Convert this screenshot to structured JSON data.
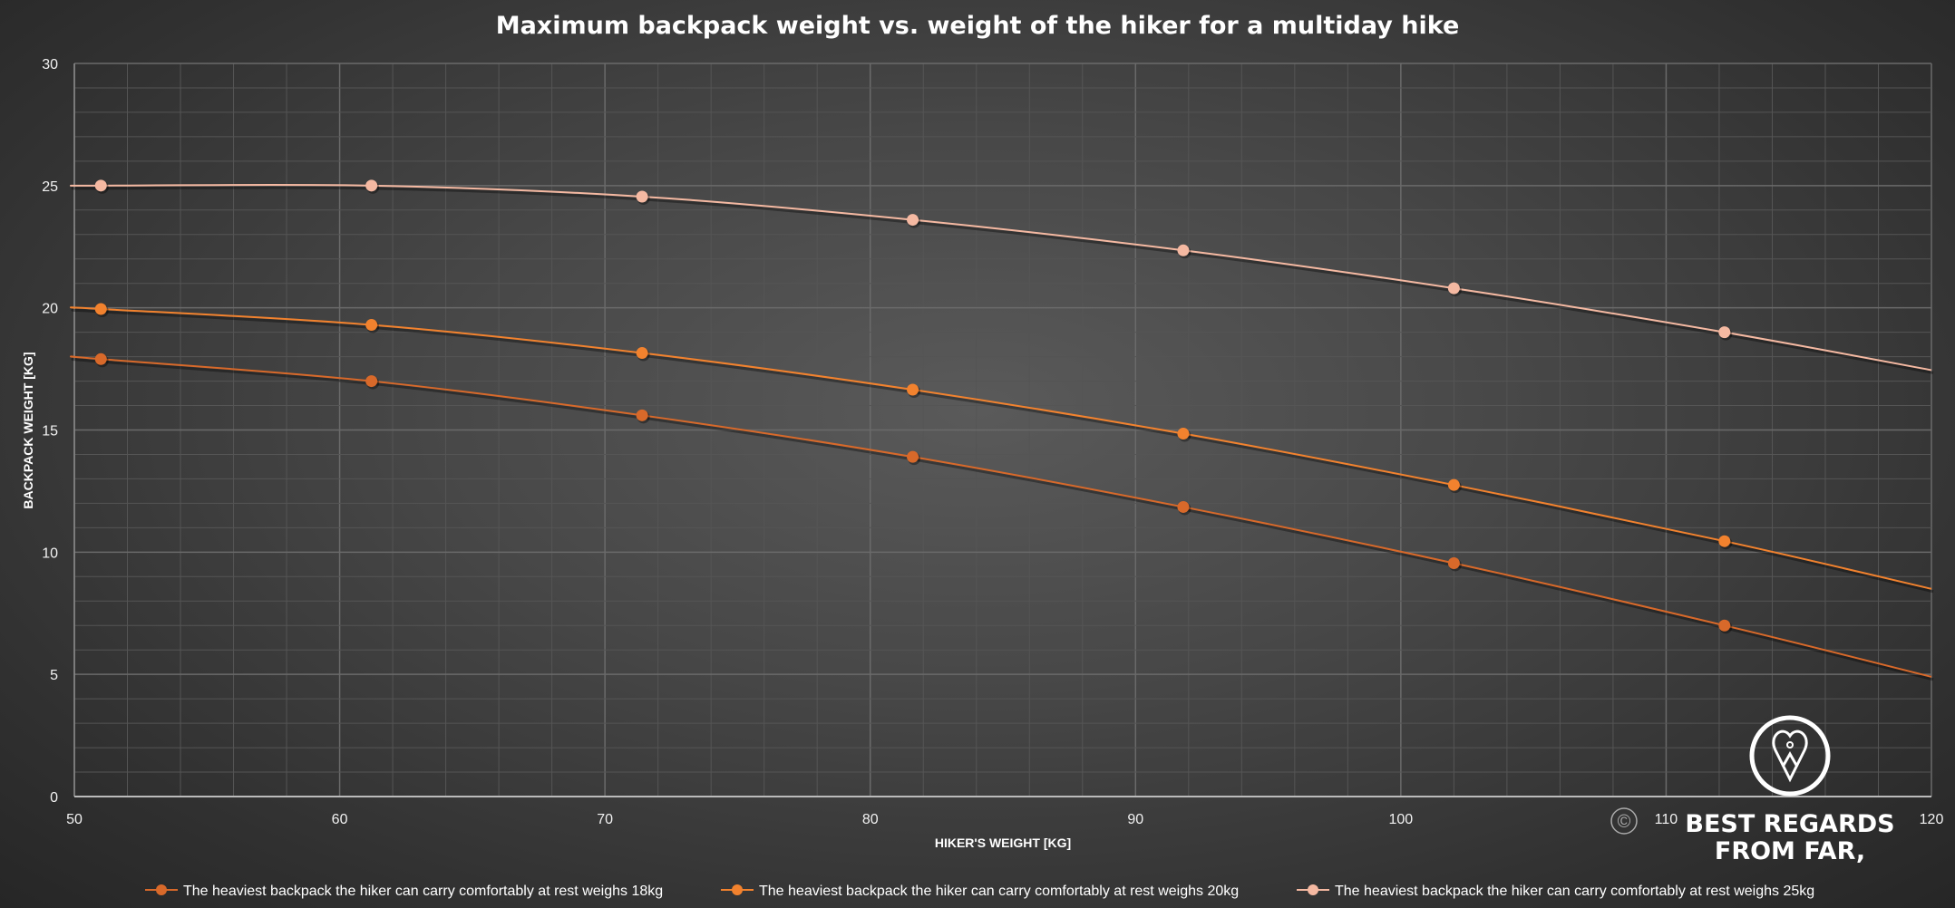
{
  "chart_data": {
    "type": "line",
    "title": "Maximum backpack weight vs. weight of the hiker for a multiday hike",
    "xlabel": "HIKER'S WEIGHT [KG]",
    "ylabel": "BACKPACK WEIGHT [KG]",
    "xlim": [
      50,
      120
    ],
    "ylim": [
      0,
      30
    ],
    "x_ticks": [
      "50",
      "60",
      "70",
      "80",
      "90",
      "100",
      "110",
      "120"
    ],
    "y_ticks": [
      "0",
      "5",
      "10",
      "15",
      "20",
      "25",
      "30"
    ],
    "grid": true,
    "smooth": true,
    "legend_position": "bottom",
    "x": [
      51,
      61.2,
      71.4,
      81.6,
      91.8,
      102,
      112.2
    ],
    "series": [
      {
        "name": "The heaviest backpack the hiker can carry comfortably at rest weighs 18kg",
        "color": "#d8692a",
        "values": [
          17.9,
          17.0,
          15.6,
          13.9,
          11.85,
          9.55,
          7.0
        ],
        "line_start": 18.0,
        "line_end": 4.9
      },
      {
        "name": "The heaviest backpack the hiker can carry comfortably at rest weighs 20kg",
        "color": "#f2822e",
        "values": [
          19.95,
          19.3,
          18.15,
          16.65,
          14.85,
          12.75,
          10.45
        ],
        "line_start": 20.0,
        "line_end": 8.5
      },
      {
        "name": "The heaviest backpack the hiker can carry comfortably at rest weighs 25kg",
        "color": "#f5b9a2",
        "values": [
          25.0,
          25.0,
          24.55,
          23.6,
          22.35,
          20.8,
          19.0
        ],
        "line_start": 25.0,
        "line_end": 17.45
      }
    ]
  },
  "watermark": {
    "copyright": "©",
    "line1": "BEST REGARDS",
    "line2": "FROM FAR,"
  }
}
